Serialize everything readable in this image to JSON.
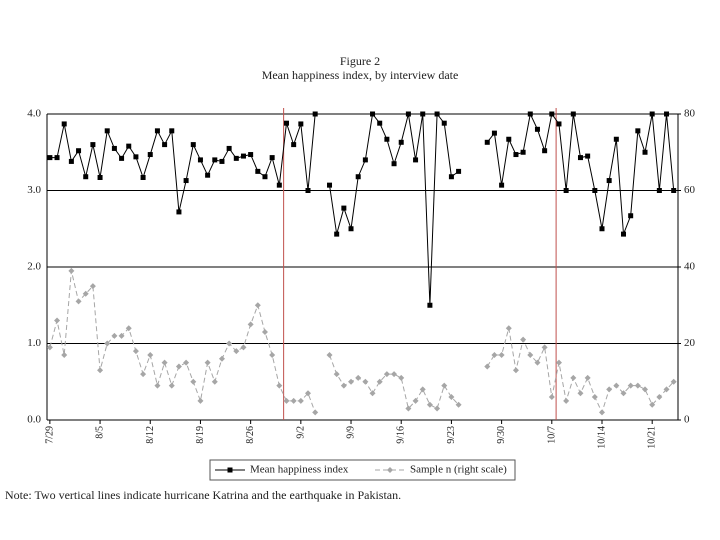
{
  "chart_data": {
    "type": "line",
    "title": "Figure 2",
    "subtitle": "Mean happiness index, by interview date",
    "categories": [
      "7/29",
      null,
      null,
      null,
      null,
      null,
      null,
      "8/5",
      null,
      null,
      null,
      null,
      null,
      null,
      "8/12",
      null,
      null,
      null,
      null,
      null,
      null,
      "8/19",
      null,
      null,
      null,
      null,
      null,
      null,
      "8/26",
      null,
      null,
      null,
      null,
      null,
      null,
      "9/2",
      null,
      null,
      null,
      null,
      null,
      null,
      "9/9",
      null,
      null,
      null,
      null,
      null,
      null,
      "9/16",
      null,
      null,
      null,
      null,
      null,
      null,
      "9/23",
      null,
      null,
      null,
      null,
      null,
      null,
      "9/30",
      null,
      null,
      null,
      null,
      null,
      null,
      "10/7",
      null,
      null,
      null,
      null,
      null,
      null,
      "10/14",
      null,
      null,
      null,
      null,
      null,
      null,
      "10/21",
      null,
      null,
      null
    ],
    "series": [
      {
        "name": "Mean happiness index",
        "color": "#000000",
        "axis": "y",
        "values": [
          3.43,
          3.43,
          3.87,
          3.38,
          3.52,
          3.18,
          3.6,
          3.17,
          3.78,
          3.55,
          3.42,
          3.58,
          3.44,
          3.17,
          3.47,
          3.78,
          3.6,
          3.78,
          2.72,
          3.13,
          3.6,
          3.4,
          3.2,
          3.4,
          3.38,
          3.55,
          3.42,
          3.45,
          3.47,
          3.25,
          3.18,
          3.43,
          3.07,
          3.88,
          3.6,
          3.87,
          3.0,
          4.0,
          null,
          3.07,
          2.43,
          2.77,
          2.5,
          3.18,
          3.4,
          4.0,
          3.88,
          3.67,
          3.35,
          3.63,
          4.0,
          3.4,
          4.0,
          1.5,
          4.0,
          3.88,
          3.18,
          3.25,
          null,
          null,
          null,
          3.63,
          3.75,
          3.07,
          3.67,
          3.47,
          3.5,
          4.0,
          3.8,
          3.52,
          4.0,
          3.87,
          3.0,
          4.0,
          3.43,
          3.45,
          3.0,
          2.5,
          3.13,
          3.67,
          2.43,
          2.67,
          3.78,
          3.5,
          4.0,
          3.0,
          4.0,
          3.0
        ]
      },
      {
        "name": "Sample n (right scale)",
        "color": "#a6a6a6",
        "axis": "y2",
        "values": [
          19,
          26,
          17,
          39,
          31,
          33,
          35,
          13,
          20,
          22,
          22,
          24,
          18,
          12,
          17,
          9,
          15,
          9,
          14,
          15,
          10,
          5,
          15,
          10,
          16,
          20,
          18,
          19,
          25,
          30,
          23,
          17,
          9,
          5,
          5,
          5,
          7,
          2,
          null,
          17,
          12,
          9,
          10,
          11,
          10,
          7,
          10,
          12,
          12,
          11,
          3,
          5,
          8,
          4,
          3,
          9,
          6,
          4,
          null,
          null,
          null,
          14,
          17,
          17,
          24,
          13,
          21,
          17,
          15,
          19,
          6,
          15,
          5,
          11,
          7,
          11,
          6,
          2,
          8,
          9,
          7,
          9,
          9,
          8,
          4,
          6,
          8,
          10
        ]
      }
    ],
    "vlines": [
      32.6,
      70.6
    ],
    "vline_color": "#c0504d",
    "ylim": [
      0,
      4
    ],
    "yticks": [
      {
        "value": 0,
        "label": "0.0"
      },
      {
        "value": 1,
        "label": "1.0"
      },
      {
        "value": 2,
        "label": "2.0"
      },
      {
        "value": 3,
        "label": "3.0"
      },
      {
        "value": 4,
        "label": "4.0"
      }
    ],
    "y2lim": [
      0,
      80
    ],
    "y2ticks": [
      0,
      20,
      40,
      60,
      80
    ],
    "grid": true,
    "legend": "bottom",
    "note": "Note:  Two vertical lines indicate hurricane Katrina and the earthquake in Pakistan."
  }
}
